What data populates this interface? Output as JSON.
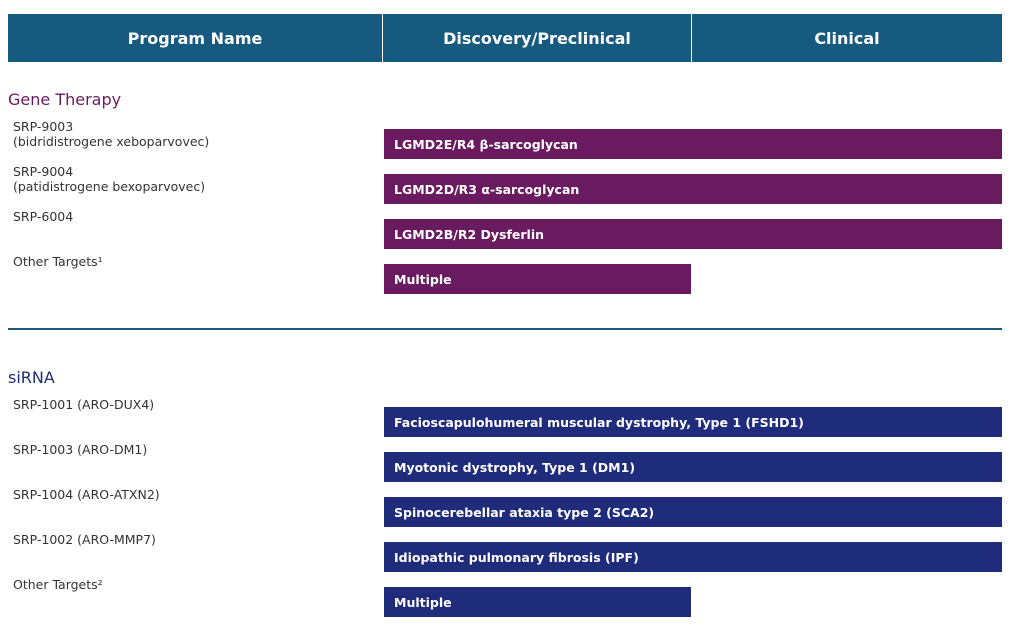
{
  "header": {
    "columns": [
      "Program Name",
      "Discovery/Preclinical",
      "Clinical"
    ]
  },
  "sections": [
    {
      "title": "Gene Therapy",
      "color": "#6a1b5f",
      "rows": [
        {
          "program": [
            "SRP-9003",
            "(bidridistrogene xeboparvovec)"
          ],
          "indication": "LGMD2E/R4 β-sarcoglycan",
          "stage": "Clinical"
        },
        {
          "program": [
            "SRP-9004",
            "(patidistrogene bexoparvovec)"
          ],
          "indication": "LGMD2D/R3 α-sarcoglycan",
          "stage": "Clinical"
        },
        {
          "program": [
            "SRP-6004"
          ],
          "indication": "LGMD2B/R2 Dysferlin",
          "stage": "Clinical"
        },
        {
          "program": [
            "Other Targets¹"
          ],
          "indication": "Multiple",
          "stage": "Discovery/Preclinical"
        }
      ]
    },
    {
      "title": "siRNA",
      "color": "#1f2c7c",
      "rows": [
        {
          "program": [
            "SRP-1001 (ARO-DUX4)"
          ],
          "indication": "Facioscapulohumeral muscular dystrophy, Type 1 (FSHD1)",
          "stage": "Clinical"
        },
        {
          "program": [
            "SRP-1003 (ARO-DM1)"
          ],
          "indication": "Myotonic dystrophy, Type 1 (DM1)",
          "stage": "Clinical"
        },
        {
          "program": [
            "SRP-1004 (ARO-ATXN2)"
          ],
          "indication": "Spinocerebellar ataxia type 2 (SCA2)",
          "stage": "Clinical"
        },
        {
          "program": [
            "SRP-1002 (ARO-MMP7)"
          ],
          "indication": "Idiopathic pulmonary fibrosis (IPF)",
          "stage": "Clinical"
        },
        {
          "program": [
            "Other Targets²"
          ],
          "indication": "Multiple",
          "stage": "Discovery/Preclinical"
        }
      ]
    }
  ]
}
